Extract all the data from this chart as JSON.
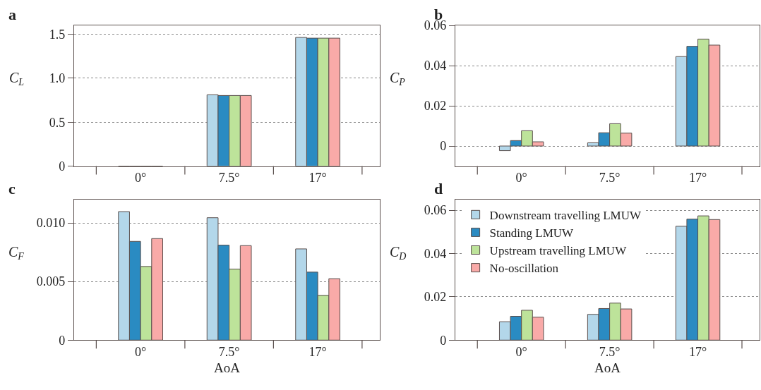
{
  "chart_data": [
    {
      "type": "bar",
      "title": "a",
      "ylabel": "C$_{L}$",
      "categories": [
        "0°",
        "7.5°",
        "17°"
      ],
      "ylim": [
        0,
        1.6
      ],
      "yticks": [
        0,
        0.5,
        {
          "value": 1.0,
          "label": "1.0"
        },
        1.5
      ],
      "grid": "y",
      "series": [
        {
          "color": "#b3d7ea",
          "values": [
            0,
            0.811,
            1.463
          ]
        },
        {
          "color": "#2a8bc2",
          "values": [
            0,
            0.803,
            1.455
          ]
        },
        {
          "color": "#bde39a",
          "values": [
            0,
            0.803,
            1.455
          ]
        },
        {
          "color": "#f9aaa8",
          "values": [
            0,
            0.803,
            1.455
          ]
        }
      ]
    },
    {
      "type": "bar",
      "title": "b",
      "ylabel": "C$_{P}$",
      "categories": [
        "0°",
        "7.5°",
        "17°"
      ],
      "ylim": [
        -0.01,
        0.06
      ],
      "yticks": [
        0,
        0.02,
        0.04,
        0.06
      ],
      "grid": "y",
      "series": [
        {
          "color": "#b3d7ea",
          "values": [
            -0.0023,
            0.0016,
            0.0445
          ]
        },
        {
          "color": "#2a8bc2",
          "values": [
            0.0027,
            0.0066,
            0.0496
          ]
        },
        {
          "color": "#bde39a",
          "values": [
            0.0076,
            0.0111,
            0.0532
          ]
        },
        {
          "color": "#f9aaa8",
          "values": [
            0.0021,
            0.0064,
            0.0502
          ]
        }
      ]
    },
    {
      "type": "bar",
      "title": "c",
      "xlabel": "AoA",
      "ylabel": "C$_{F}$",
      "categories": [
        "0°",
        "7.5°",
        "17°"
      ],
      "ylim": [
        0,
        0.012
      ],
      "yticks": [
        0,
        0.005,
        {
          "value": 0.01,
          "label": "0.010"
        }
      ],
      "grid": "y",
      "series": [
        {
          "color": "#b3d7ea",
          "values": [
            0.01096,
            0.01044,
            0.00778
          ]
        },
        {
          "color": "#2a8bc2",
          "values": [
            0.00842,
            0.0081,
            0.0058
          ]
        },
        {
          "color": "#bde39a",
          "values": [
            0.00628,
            0.00606,
            0.00382
          ]
        },
        {
          "color": "#f9aaa8",
          "values": [
            0.00866,
            0.00806,
            0.00524
          ]
        }
      ]
    },
    {
      "type": "bar",
      "title": "d",
      "xlabel": "AoA",
      "ylabel": "C$_{D}$",
      "categories": [
        "0°",
        "7.5°",
        "17°"
      ],
      "ylim": [
        0,
        0.065
      ],
      "yticks": [
        0,
        0.02,
        0.04,
        0.06
      ],
      "grid": "y",
      "legend": "top left",
      "series": [
        {
          "name": "Downstream travelling LMUW",
          "color": "#b3d7ea",
          "values": [
            0.0085,
            0.0119,
            0.0526
          ]
        },
        {
          "name": "Standing LMUW",
          "color": "#2a8bc2",
          "values": [
            0.011,
            0.0146,
            0.0559
          ]
        },
        {
          "name": "Upstream travelling LMUW",
          "color": "#bde39a",
          "values": [
            0.0138,
            0.0171,
            0.0574
          ]
        },
        {
          "name": "No-oscillation",
          "color": "#f9aaa8",
          "values": [
            0.0106,
            0.0144,
            0.0557
          ]
        }
      ]
    }
  ]
}
